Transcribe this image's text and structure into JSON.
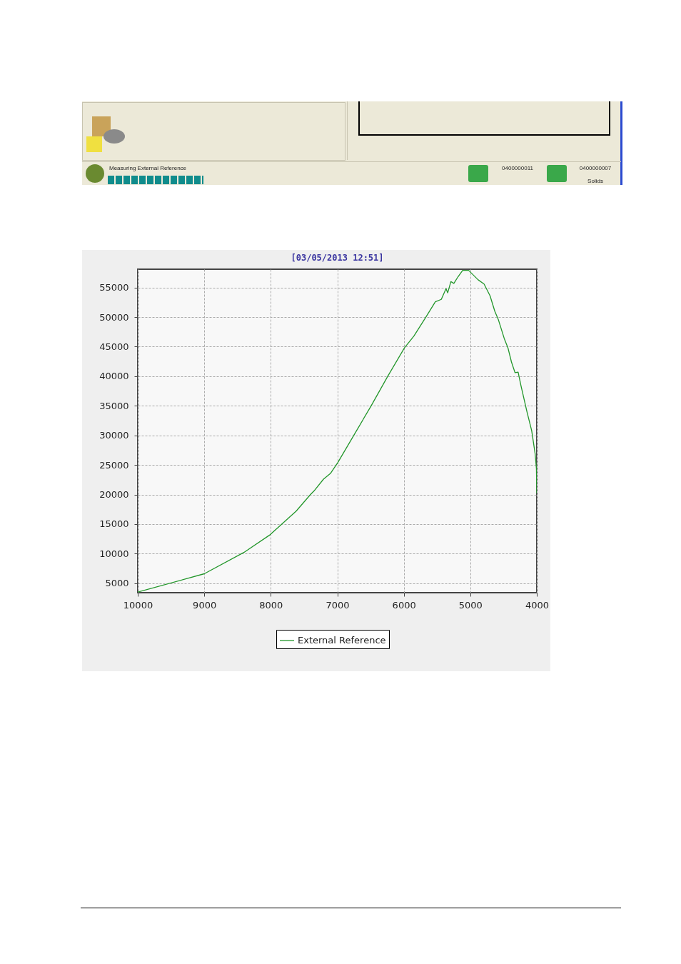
{
  "chart_data": {
    "type": "line",
    "title": "[03/05/2013 12:51]",
    "x": [
      10000,
      9000,
      8405,
      8010,
      7618,
      7403,
      7350,
      7207,
      7100,
      6993,
      6742,
      6491,
      6241,
      5990,
      5848,
      5668,
      5526,
      5436,
      5365,
      5340,
      5292,
      5247,
      5186,
      5115,
      5025,
      4882,
      4793,
      4703,
      4632,
      4579,
      4490,
      4434,
      4381,
      4327,
      4281,
      4238,
      4148,
      4077,
      4024,
      4006,
      4000
    ],
    "series": [
      {
        "name": "External Reference",
        "color": "#22962a",
        "values": [
          3500,
          6600,
          10200,
          13200,
          17200,
          20000,
          20600,
          22600,
          23600,
          25400,
          30200,
          35000,
          40000,
          44800,
          46800,
          50000,
          52600,
          53000,
          54800,
          54100,
          56000,
          55700,
          56800,
          57900,
          57900,
          56300,
          55600,
          53600,
          51000,
          49600,
          46400,
          44800,
          42400,
          40600,
          40700,
          38400,
          34000,
          30800,
          26800,
          24400,
          20200
        ]
      }
    ],
    "xlim": [
      10000,
      4000
    ],
    "xticks": [
      10000,
      9000,
      8000,
      7000,
      6000,
      5000,
      4000
    ],
    "ylim": [
      3400,
      58100
    ],
    "yticks": [
      5000,
      10000,
      15000,
      20000,
      25000,
      30000,
      35000,
      40000,
      45000,
      50000,
      55000
    ],
    "grid": true,
    "legend": "bottom",
    "line_style": "solid",
    "annotations": [
      "Measuring External Reference",
      "0400000011",
      "0400000007",
      "Solids"
    ]
  }
}
